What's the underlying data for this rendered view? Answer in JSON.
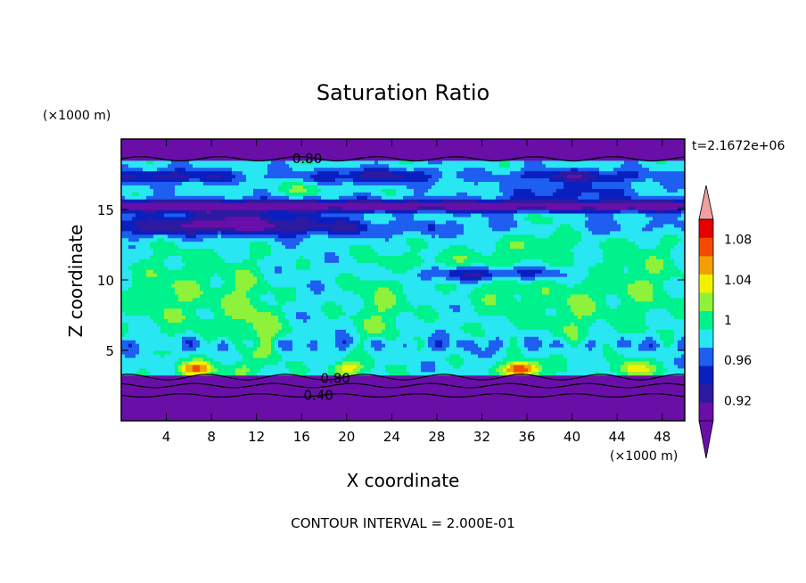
{
  "chart_data": {
    "type": "heatmap",
    "title": "Saturation Ratio",
    "xlabel": "X coordinate",
    "ylabel": "Z coordinate",
    "x_unit": "(×1000 m)",
    "y_unit": "(×1000 m)",
    "xlim": [
      0,
      50
    ],
    "ylim": [
      0,
      20
    ],
    "x_ticks": [
      "4",
      "8",
      "12",
      "16",
      "20",
      "24",
      "28",
      "32",
      "36",
      "40",
      "44",
      "48"
    ],
    "x_tick_values": [
      4,
      8,
      12,
      16,
      20,
      24,
      28,
      32,
      36,
      40,
      44,
      48
    ],
    "y_ticks": [
      "5",
      "10",
      "15"
    ],
    "y_tick_values": [
      5,
      10,
      15
    ],
    "time_label": "t=2.1672e+06",
    "contour_interval_label": "CONTOUR INTERVAL = 2.000E-01",
    "contour_labels": [
      {
        "text": "0.80",
        "x": 16.5,
        "z": 18.6
      },
      {
        "text": "0.80",
        "x": 19.0,
        "z": 3.0
      },
      {
        "text": "0.40",
        "x": 17.5,
        "z": 1.8
      }
    ],
    "colorbar": {
      "levels": [
        0.9,
        0.92,
        0.94,
        0.96,
        0.98,
        1.0,
        1.02,
        1.04,
        1.06,
        1.08,
        1.1
      ],
      "labels": [
        "0.92",
        "0.96",
        "1",
        "1.04",
        "1.08"
      ],
      "label_values": [
        0.92,
        0.96,
        1.0,
        1.04,
        1.08
      ],
      "colors": [
        "#6a0ea8",
        "#2e1aa0",
        "#0a1fbf",
        "#1e5ef0",
        "#28e6f2",
        "#00f28c",
        "#8ef23a",
        "#f2f200",
        "#f2a000",
        "#f24a00",
        "#e60000"
      ],
      "under_color": "#6a0ea8",
      "over_color": "#f0a0a0"
    }
  }
}
